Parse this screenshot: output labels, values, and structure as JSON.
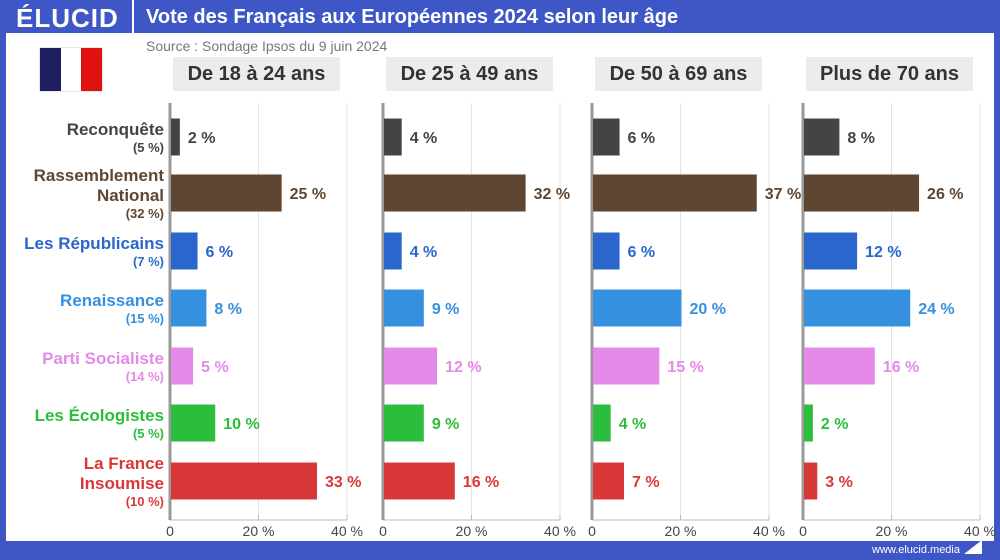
{
  "header": {
    "logo": "ÉLUCID",
    "title": "Vote des Français aux Européennes 2024 selon leur âge"
  },
  "source": "Source : Sondage Ipsos du 9 juin 2024",
  "footer": "www.elucid.media",
  "chart_data": {
    "type": "bar",
    "orientation": "horizontal",
    "xlim": [
      0,
      40
    ],
    "ticks": [
      "0",
      "20 %",
      "40 %"
    ],
    "grid": true,
    "categories": [
      {
        "name": "Reconquête",
        "overall": "(5 %)",
        "color": "#444444",
        "label_color": "#444444"
      },
      {
        "name": "Rassemblement National",
        "overall": "(32 %)",
        "color": "#5e4632",
        "label_color": "#5e4632"
      },
      {
        "name": "Les Républicains",
        "overall": "(7 %)",
        "color": "#2a66cc",
        "label_color": "#2a66cc"
      },
      {
        "name": "Renaissance",
        "overall": "(15 %)",
        "color": "#3690e0",
        "label_color": "#3690e0"
      },
      {
        "name": "Parti Socialiste",
        "overall": "(14 %)",
        "color": "#e48ae8",
        "label_color": "#e48ae8"
      },
      {
        "name": "Les Écologistes",
        "overall": "(5 %)",
        "color": "#2dbd3c",
        "label_color": "#2dbd3c"
      },
      {
        "name": "La France Insoumise",
        "overall": "(10 %)",
        "color": "#d93838",
        "label_color": "#d93838"
      }
    ],
    "series": [
      {
        "name": "De 18 à 24 ans",
        "values": [
          2,
          25,
          6,
          8,
          5,
          10,
          33
        ]
      },
      {
        "name": "De 25 à 49 ans",
        "values": [
          4,
          32,
          4,
          9,
          12,
          9,
          16
        ]
      },
      {
        "name": "De 50 à 69 ans",
        "values": [
          6,
          37,
          6,
          20,
          15,
          4,
          7
        ]
      },
      {
        "name": "Plus de 70 ans",
        "values": [
          8,
          26,
          12,
          24,
          16,
          2,
          3
        ]
      }
    ]
  }
}
